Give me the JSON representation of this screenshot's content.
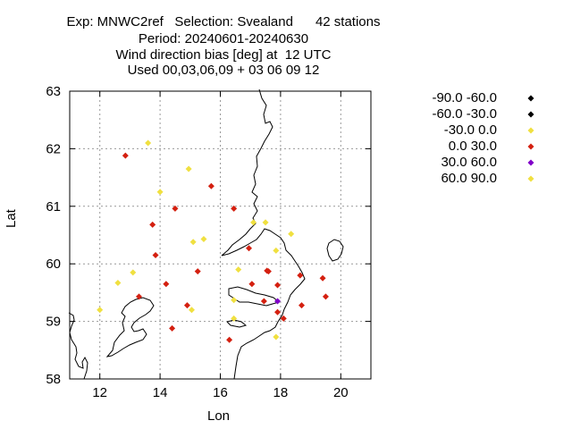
{
  "title": {
    "line1": "Exp: MNWC2ref   Selection: Svealand      42 stations",
    "line2": "Period: 20240601-20240630",
    "line3": "Wind direction bias [deg] at  12 UTC",
    "line4": "Used 00,03,06,09 + 03 06 09 12"
  },
  "axes": {
    "xlabel": "Lon",
    "ylabel": "Lat",
    "xlim": [
      11,
      21
    ],
    "ylim": [
      58,
      63
    ],
    "xticks": [
      12,
      14,
      16,
      18,
      20
    ],
    "yticks": [
      58,
      59,
      60,
      61,
      62,
      63
    ],
    "grid": true
  },
  "legend": {
    "placement": "right",
    "items": [
      {
        "label": "-90.0 -60.0",
        "color": "#000000"
      },
      {
        "label": "-60.0 -30.0",
        "color": "#000000"
      },
      {
        "label": "-30.0 0.0",
        "color": "#f0e040"
      },
      {
        "label": "0.0 30.0",
        "color": "#d42010"
      },
      {
        "label": "30.0 60.0",
        "color": "#8000c8"
      },
      {
        "label": "60.0 90.0",
        "color": "#f0e040"
      }
    ]
  },
  "chart_data": {
    "type": "scatter",
    "series": [
      {
        "name": "-30.0 0.0",
        "color": "#f0e040",
        "points": [
          [
            13.6,
            62.1
          ],
          [
            14.0,
            61.25
          ],
          [
            14.95,
            61.65
          ],
          [
            15.1,
            60.38
          ],
          [
            15.45,
            60.43
          ],
          [
            17.1,
            60.72
          ],
          [
            17.5,
            60.72
          ],
          [
            18.35,
            60.52
          ],
          [
            17.85,
            60.23
          ],
          [
            16.6,
            59.9
          ],
          [
            13.1,
            59.85
          ],
          [
            12.6,
            59.67
          ],
          [
            12.0,
            59.2
          ],
          [
            15.05,
            59.2
          ],
          [
            16.45,
            59.37
          ],
          [
            16.45,
            59.05
          ],
          [
            17.85,
            58.73
          ]
        ]
      },
      {
        "name": "0.0 30.0",
        "color": "#d42010",
        "points": [
          [
            12.85,
            61.88
          ],
          [
            15.7,
            61.35
          ],
          [
            14.5,
            60.96
          ],
          [
            16.45,
            60.96
          ],
          [
            13.75,
            60.68
          ],
          [
            13.85,
            60.15
          ],
          [
            16.95,
            60.27
          ],
          [
            17.55,
            59.88
          ],
          [
            17.6,
            59.87
          ],
          [
            18.65,
            59.8
          ],
          [
            19.4,
            59.75
          ],
          [
            15.25,
            59.87
          ],
          [
            14.2,
            59.65
          ],
          [
            17.05,
            59.65
          ],
          [
            17.9,
            59.63
          ],
          [
            13.3,
            59.43
          ],
          [
            19.5,
            59.43
          ],
          [
            17.45,
            59.35
          ],
          [
            14.9,
            59.28
          ],
          [
            18.7,
            59.28
          ],
          [
            17.9,
            59.16
          ],
          [
            18.1,
            59.05
          ],
          [
            14.4,
            58.88
          ],
          [
            16.3,
            58.68
          ]
        ]
      },
      {
        "name": "30.0 60.0",
        "color": "#8000c8",
        "points": [
          [
            17.9,
            59.35
          ]
        ]
      }
    ]
  }
}
